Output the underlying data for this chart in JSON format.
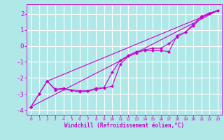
{
  "xlabel": "Windchill (Refroidissement éolien,°C)",
  "xlim": [
    -0.5,
    23.5
  ],
  "ylim": [
    -4.3,
    2.6
  ],
  "yticks": [
    -4,
    -3,
    -2,
    -1,
    0,
    1,
    2
  ],
  "xticks": [
    0,
    1,
    2,
    3,
    4,
    5,
    6,
    7,
    8,
    9,
    10,
    11,
    12,
    13,
    14,
    15,
    16,
    17,
    18,
    19,
    20,
    21,
    22,
    23
  ],
  "bg_color": "#b0e8e8",
  "grid_color": "#d0f0f0",
  "line_color": "#cc00cc",
  "line1_x": [
    0,
    1,
    2,
    3,
    4,
    5,
    6,
    7,
    8,
    9,
    10,
    11,
    12,
    13,
    14,
    15,
    16,
    17,
    18,
    19,
    20,
    21,
    22,
    23
  ],
  "line1_y": [
    -3.8,
    -3.0,
    -2.2,
    -2.7,
    -2.65,
    -2.75,
    -2.8,
    -2.8,
    -2.65,
    -2.6,
    -1.65,
    -0.9,
    -0.6,
    -0.35,
    -0.3,
    -0.3,
    -0.3,
    -0.35,
    0.65,
    0.85,
    1.35,
    1.85,
    2.05,
    2.2
  ],
  "line2_x": [
    0,
    1,
    2,
    3,
    4,
    5,
    6,
    7,
    8,
    9,
    10,
    11,
    12,
    13,
    14,
    15,
    16,
    17,
    18,
    19,
    20,
    21,
    22,
    23
  ],
  "line2_y": [
    -3.8,
    -3.0,
    -2.2,
    -2.75,
    -2.7,
    -2.78,
    -2.88,
    -2.82,
    -2.72,
    -2.62,
    -2.52,
    -1.15,
    -0.65,
    -0.45,
    -0.25,
    -0.15,
    -0.15,
    0.15,
    0.55,
    0.85,
    1.25,
    1.75,
    2.05,
    2.2
  ],
  "line3_x": [
    0,
    23
  ],
  "line3_y": [
    -3.8,
    2.2
  ],
  "line4_x": [
    2,
    23
  ],
  "line4_y": [
    -2.2,
    2.2
  ]
}
